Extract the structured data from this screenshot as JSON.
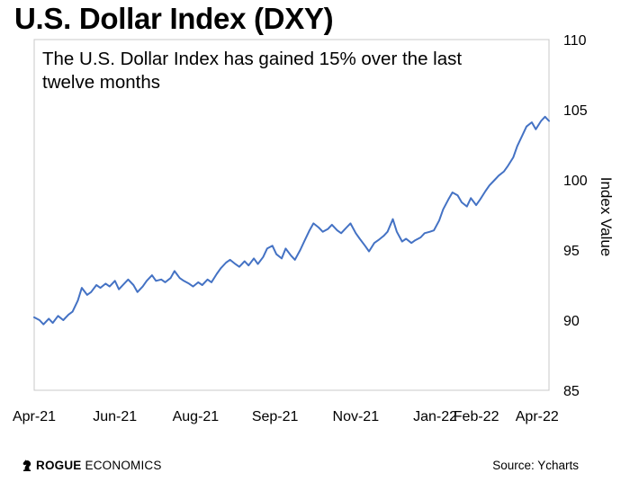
{
  "title": "U.S. Dollar Index (DXY)",
  "chart_data": {
    "type": "line",
    "title": "U.S. Dollar Index (DXY)",
    "annotation": "The U.S. Dollar Index has gained 15% over the last twelve months",
    "xlabel": "",
    "ylabel": "Index Value",
    "ylim": [
      85,
      110
    ],
    "yticks": [
      85,
      90,
      95,
      100,
      105,
      110
    ],
    "xlim": [
      "2021-04-01",
      "2022-04-25"
    ],
    "xticks": [
      {
        "date": "2021-04-01",
        "label": "Apr-21"
      },
      {
        "date": "2021-06-01",
        "label": "Jun-21"
      },
      {
        "date": "2021-08-01",
        "label": "Aug-21"
      },
      {
        "date": "2021-09-30",
        "label": "Sep-21"
      },
      {
        "date": "2021-11-30",
        "label": "Nov-21"
      },
      {
        "date": "2022-01-29",
        "label": "Jan-22"
      },
      {
        "date": "2022-03-01",
        "label": "Feb-22"
      },
      {
        "date": "2022-04-16",
        "label": "Apr-22"
      }
    ],
    "grid": false,
    "y_axis_side": "right",
    "series": [
      {
        "color": "#4472c4",
        "x": [
          "2021-04-01",
          "2021-04-05",
          "2021-04-08",
          "2021-04-12",
          "2021-04-15",
          "2021-04-19",
          "2021-04-23",
          "2021-04-27",
          "2021-04-30",
          "2021-05-04",
          "2021-05-07",
          "2021-05-11",
          "2021-05-14",
          "2021-05-18",
          "2021-05-21",
          "2021-05-25",
          "2021-05-28",
          "2021-06-01",
          "2021-06-04",
          "2021-06-08",
          "2021-06-11",
          "2021-06-15",
          "2021-06-18",
          "2021-06-22",
          "2021-06-25",
          "2021-06-29",
          "2021-07-02",
          "2021-07-06",
          "2021-07-09",
          "2021-07-13",
          "2021-07-16",
          "2021-07-20",
          "2021-07-23",
          "2021-07-27",
          "2021-07-30",
          "2021-08-03",
          "2021-08-06",
          "2021-08-10",
          "2021-08-13",
          "2021-08-17",
          "2021-08-20",
          "2021-08-24",
          "2021-08-27",
          "2021-08-31",
          "2021-09-03",
          "2021-09-07",
          "2021-09-10",
          "2021-09-14",
          "2021-09-17",
          "2021-09-21",
          "2021-09-24",
          "2021-09-28",
          "2021-10-01",
          "2021-10-05",
          "2021-10-08",
          "2021-10-12",
          "2021-10-15",
          "2021-10-19",
          "2021-10-22",
          "2021-10-26",
          "2021-10-29",
          "2021-11-02",
          "2021-11-05",
          "2021-11-09",
          "2021-11-12",
          "2021-11-16",
          "2021-11-19",
          "2021-11-23",
          "2021-11-26",
          "2021-11-30",
          "2021-12-03",
          "2021-12-07",
          "2021-12-10",
          "2021-12-14",
          "2021-12-17",
          "2021-12-21",
          "2021-12-24",
          "2021-12-28",
          "2021-12-31",
          "2022-01-04",
          "2022-01-07",
          "2022-01-11",
          "2022-01-14",
          "2022-01-18",
          "2022-01-21",
          "2022-01-25",
          "2022-01-28",
          "2022-02-01",
          "2022-02-04",
          "2022-02-08",
          "2022-02-11",
          "2022-02-15",
          "2022-02-18",
          "2022-02-22",
          "2022-02-25",
          "2022-03-01",
          "2022-03-04",
          "2022-03-08",
          "2022-03-11",
          "2022-03-15",
          "2022-03-18",
          "2022-03-22",
          "2022-03-25",
          "2022-03-29",
          "2022-04-01",
          "2022-04-05",
          "2022-04-08",
          "2022-04-12",
          "2022-04-15",
          "2022-04-19",
          "2022-04-22",
          "2022-04-25"
        ],
        "y": [
          90.2,
          90.0,
          89.7,
          90.1,
          89.8,
          90.3,
          90.0,
          90.4,
          90.6,
          91.4,
          92.3,
          91.8,
          92.0,
          92.5,
          92.3,
          92.6,
          92.4,
          92.8,
          92.2,
          92.6,
          92.9,
          92.5,
          92.0,
          92.4,
          92.8,
          93.2,
          92.8,
          92.9,
          92.7,
          93.0,
          93.5,
          93.0,
          92.8,
          92.6,
          92.4,
          92.7,
          92.5,
          92.9,
          92.7,
          93.3,
          93.7,
          94.1,
          94.3,
          94.0,
          93.8,
          94.2,
          93.9,
          94.4,
          94.0,
          94.5,
          95.1,
          95.3,
          94.7,
          94.4,
          95.1,
          94.6,
          94.3,
          95.0,
          95.6,
          96.4,
          96.9,
          96.6,
          96.3,
          96.5,
          96.8,
          96.4,
          96.2,
          96.6,
          96.9,
          96.2,
          95.8,
          95.3,
          94.9,
          95.5,
          95.7,
          96.0,
          96.3,
          97.2,
          96.3,
          95.6,
          95.8,
          95.5,
          95.7,
          95.9,
          96.2,
          96.3,
          96.4,
          97.1,
          97.9,
          98.6,
          99.1,
          98.9,
          98.4,
          98.1,
          98.7,
          98.2,
          98.6,
          99.2,
          99.6,
          100.0,
          100.3,
          100.6,
          101.0,
          101.6,
          102.4,
          103.2,
          103.8,
          104.1,
          103.6,
          104.2,
          104.5,
          104.2
        ]
      }
    ]
  },
  "brand": {
    "bold": "ROGUE",
    "rest": "ECONOMICS"
  },
  "source": "Source: Ycharts",
  "colors": {
    "line": "#4472c4",
    "plot_border": "#c8c8c8"
  },
  "icons": {
    "brand": "knight-chess-icon"
  }
}
